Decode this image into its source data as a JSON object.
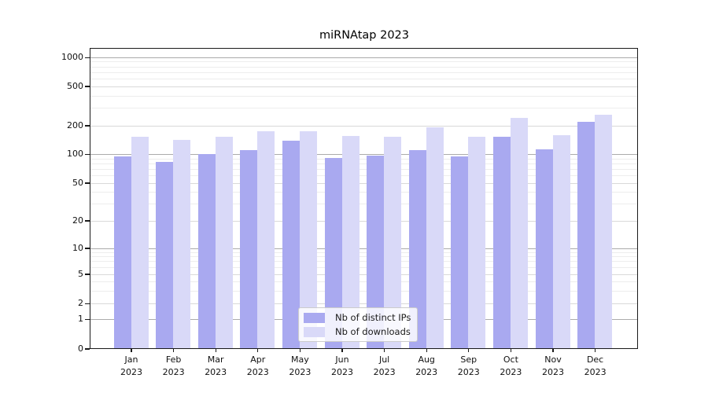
{
  "title": "miRNAtap 2023",
  "legend": {
    "items": [
      {
        "label": "Nb of distinct IPs",
        "color": "#a9a9f0"
      },
      {
        "label": "Nb of downloads",
        "color": "#d9d9f8"
      }
    ]
  },
  "chart_data": {
    "type": "bar",
    "title": "miRNAtap 2023",
    "x_categories": [
      "Jan 2023",
      "Feb 2023",
      "Mar 2023",
      "Apr 2023",
      "May 2023",
      "Jun 2023",
      "Jul 2023",
      "Aug 2023",
      "Sep 2023",
      "Oct 2023",
      "Nov 2023",
      "Dec 2023"
    ],
    "x_tick_months": [
      "Jan",
      "Feb",
      "Mar",
      "Apr",
      "May",
      "Jun",
      "Jul",
      "Aug",
      "Sep",
      "Oct",
      "Nov",
      "Dec"
    ],
    "x_tick_year": "2023",
    "series": [
      {
        "name": "Nb of distinct IPs",
        "color": "#a9a9f0",
        "values": [
          95,
          83,
          100,
          110,
          138,
          92,
          96,
          110,
          94,
          153,
          112,
          216
        ]
      },
      {
        "name": "Nb of downloads",
        "color": "#d9d9f8",
        "values": [
          153,
          142,
          153,
          172,
          173,
          156,
          153,
          190,
          151,
          240,
          158,
          255
        ]
      }
    ],
    "y_axis": {
      "scale": "symlog",
      "tick_values": [
        1000,
        500,
        200,
        100,
        50,
        20,
        10,
        5,
        2,
        1,
        0
      ],
      "tick_labels": [
        "1000",
        "500",
        "200",
        "100",
        "50",
        "20",
        "10",
        "5",
        "2",
        "1",
        "0"
      ],
      "minor_tick_values": [
        3,
        4,
        6,
        7,
        8,
        9,
        30,
        40,
        60,
        70,
        80,
        90,
        300,
        400,
        600,
        700,
        800,
        900
      ],
      "ylim": [
        0,
        1300
      ],
      "grid": true
    },
    "legend_position": "lower center"
  }
}
